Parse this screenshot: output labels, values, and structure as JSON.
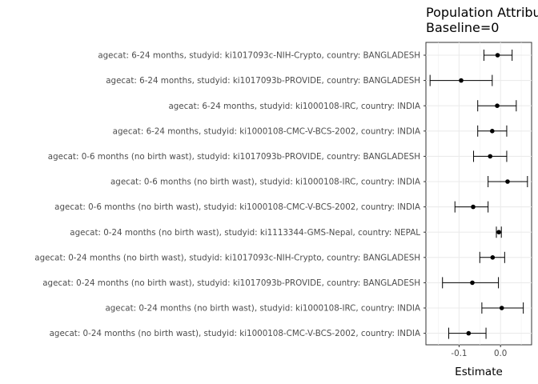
{
  "chart_data": {
    "type": "forest",
    "title_lines": [
      "Population Attributable Difference",
      "Baseline=0"
    ],
    "xlabel": "Estimate",
    "ylabel": "",
    "xlim": [
      -0.18,
      0.075
    ],
    "xticks": [
      -0.1,
      0.0
    ],
    "xtick_labels": [
      "-0.1",
      "0.0"
    ],
    "grid": true,
    "categories": [
      "agecat: 6-24 months, studyid: ki1017093c-NIH-Crypto, country: BANGLADESH",
      "agecat: 6-24 months, studyid: ki1017093b-PROVIDE, country: BANGLADESH",
      "agecat: 6-24 months, studyid: ki1000108-IRC, country: INDIA",
      "agecat: 6-24 months, studyid: ki1000108-CMC-V-BCS-2002, country: INDIA",
      "agecat: 0-6 months (no birth wast), studyid: ki1017093b-PROVIDE, country: BANGLADESH",
      "agecat: 0-6 months (no birth wast), studyid: ki1000108-IRC, country: INDIA",
      "agecat: 0-6 months (no birth wast), studyid: ki1000108-CMC-V-BCS-2002, country: INDIA",
      "agecat: 0-24 months (no birth wast), studyid: ki1113344-GMS-Nepal, country: NEPAL",
      "agecat: 0-24 months (no birth wast), studyid: ki1017093c-NIH-Crypto, country: BANGLADESH",
      "agecat: 0-24 months (no birth wast), studyid: ki1017093b-PROVIDE, country: BANGLADESH",
      "agecat: 0-24 months (no birth wast), studyid: ki1000108-IRC, country: INDIA",
      "agecat: 0-24 months (no birth wast), studyid: ki1000108-CMC-V-BCS-2002, country: INDIA"
    ],
    "estimates": [
      -0.007,
      -0.095,
      -0.008,
      -0.02,
      -0.025,
      0.017,
      -0.066,
      -0.004,
      -0.019,
      -0.068,
      0.003,
      -0.077
    ],
    "lower": [
      -0.04,
      -0.17,
      -0.055,
      -0.055,
      -0.065,
      -0.03,
      -0.11,
      -0.01,
      -0.05,
      -0.14,
      -0.045,
      -0.125
    ],
    "upper": [
      0.028,
      -0.02,
      0.038,
      0.015,
      0.015,
      0.065,
      -0.03,
      0.002,
      0.01,
      -0.005,
      0.055,
      -0.035
    ]
  }
}
